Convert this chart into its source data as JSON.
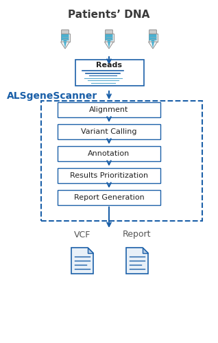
{
  "title": "Patients’ DNA",
  "title_fontsize": 11,
  "title_fontweight": "bold",
  "title_color": "#3a3a3a",
  "als_label": "ALSgeneScanner",
  "als_label_fontsize": 10,
  "als_label_fontweight": "bold",
  "als_label_color": "#1a5fa8",
  "box_color": "#1a5fa8",
  "box_facecolor": "#ffffff",
  "arrow_color": "#1a5fa8",
  "dashed_box_color": "#1a5fa8",
  "steps": [
    "Alignment",
    "Variant Calling",
    "Annotation",
    "Results Prioritization",
    "Report Generation"
  ],
  "reads_label": "Reads",
  "vcf_label": "VCF",
  "report_label": "Report",
  "bg_color": "#ffffff"
}
